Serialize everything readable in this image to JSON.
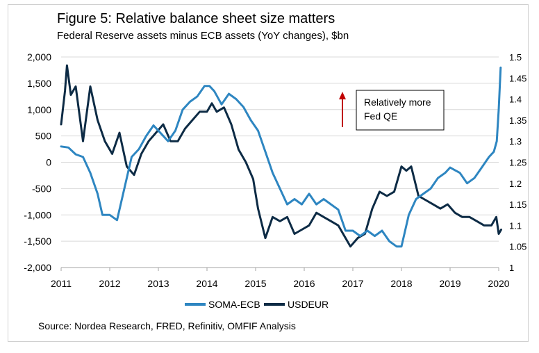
{
  "title": "Figure 5: Relative balance sheet size matters",
  "subtitle": "Federal Reserve assets minus ECB assets (YoY changes), $bn",
  "source": "Source: Nordea Research, FRED, Refinitiv, OMFIF Analysis",
  "annotation": {
    "lines": [
      "Relatively more",
      "Fed QE"
    ],
    "arrow_color": "#c00000"
  },
  "colors": {
    "soma": "#2e86c1",
    "usdeur": "#0d2b45",
    "grid": "#d9d9d9",
    "axis": "#a6a6a6"
  },
  "chart_data": {
    "type": "line",
    "title": "Figure 5: Relative balance sheet size matters",
    "subtitle": "Federal Reserve assets minus ECB assets (YoY changes), $bn",
    "x_ticks": [
      "2011",
      "2012",
      "2013",
      "2014",
      "2015",
      "2016",
      "2017",
      "2018",
      "2019",
      "2020"
    ],
    "xlim": [
      2011,
      2020
    ],
    "y_left": {
      "ticks": [
        "2,000",
        "1,500",
        "1,000",
        "500",
        "0",
        "-500",
        "-1,000",
        "-1,500",
        "-2,000"
      ],
      "lim": [
        -2000,
        2000
      ]
    },
    "y_right": {
      "ticks": [
        "1.5",
        "1.45",
        "1.4",
        "1.35",
        "1.3",
        "1.25",
        "1.2",
        "1.15",
        "1.1",
        "1.05",
        "1"
      ],
      "lim": [
        1.0,
        1.5
      ]
    },
    "grid": "horizontal",
    "legend_position": "bottom",
    "series": [
      {
        "name": "SOMA-ECB",
        "axis": "left",
        "x": [
          2011.0,
          2011.15,
          2011.3,
          2011.45,
          2011.6,
          2011.75,
          2011.85,
          2012.0,
          2012.15,
          2012.3,
          2012.45,
          2012.6,
          2012.75,
          2012.9,
          2013.05,
          2013.2,
          2013.35,
          2013.5,
          2013.65,
          2013.8,
          2013.95,
          2014.05,
          2014.15,
          2014.3,
          2014.45,
          2014.6,
          2014.75,
          2014.9,
          2015.05,
          2015.2,
          2015.35,
          2015.5,
          2015.65,
          2015.8,
          2015.95,
          2016.1,
          2016.25,
          2016.4,
          2016.55,
          2016.7,
          2016.85,
          2017.0,
          2017.15,
          2017.3,
          2017.45,
          2017.6,
          2017.75,
          2017.9,
          2018.0,
          2018.15,
          2018.3,
          2018.45,
          2018.6,
          2018.75,
          2018.9,
          2019.0,
          2019.1,
          2019.2,
          2019.35,
          2019.5,
          2019.65,
          2019.8,
          2019.9,
          2019.96,
          2020.0,
          2020.04
        ],
        "values": [
          300,
          280,
          150,
          100,
          -200,
          -600,
          -1000,
          -1000,
          -1100,
          -500,
          100,
          250,
          500,
          700,
          550,
          400,
          600,
          1000,
          1150,
          1250,
          1450,
          1450,
          1350,
          1100,
          1300,
          1200,
          1050,
          800,
          600,
          200,
          -200,
          -500,
          -800,
          -700,
          -800,
          -600,
          -800,
          -700,
          -800,
          -900,
          -1300,
          -1300,
          -1400,
          -1300,
          -1400,
          -1300,
          -1500,
          -1600,
          -1600,
          -1000,
          -700,
          -600,
          -500,
          -300,
          -200,
          -100,
          -150,
          -200,
          -400,
          -300,
          -100,
          100,
          200,
          400,
          1000,
          1800
        ]
      },
      {
        "name": "USDEUR",
        "axis": "right",
        "x": [
          2011.0,
          2011.08,
          2011.12,
          2011.2,
          2011.3,
          2011.45,
          2011.6,
          2011.75,
          2011.9,
          2012.05,
          2012.2,
          2012.35,
          2012.5,
          2012.65,
          2012.8,
          2012.95,
          2013.1,
          2013.25,
          2013.4,
          2013.55,
          2013.7,
          2013.85,
          2014.0,
          2014.1,
          2014.2,
          2014.35,
          2014.5,
          2014.65,
          2014.8,
          2014.95,
          2015.05,
          2015.2,
          2015.35,
          2015.5,
          2015.65,
          2015.8,
          2015.95,
          2016.1,
          2016.25,
          2016.4,
          2016.55,
          2016.7,
          2016.85,
          2016.95,
          2017.1,
          2017.25,
          2017.4,
          2017.55,
          2017.7,
          2017.85,
          2018.0,
          2018.1,
          2018.2,
          2018.35,
          2018.5,
          2018.65,
          2018.8,
          2018.95,
          2019.1,
          2019.25,
          2019.4,
          2019.55,
          2019.7,
          2019.85,
          2019.95,
          2020.0,
          2020.05
        ],
        "values": [
          1.34,
          1.42,
          1.48,
          1.41,
          1.43,
          1.3,
          1.43,
          1.35,
          1.3,
          1.27,
          1.32,
          1.24,
          1.22,
          1.27,
          1.3,
          1.32,
          1.34,
          1.3,
          1.3,
          1.33,
          1.35,
          1.37,
          1.37,
          1.39,
          1.37,
          1.38,
          1.34,
          1.28,
          1.25,
          1.21,
          1.14,
          1.07,
          1.12,
          1.11,
          1.12,
          1.08,
          1.09,
          1.1,
          1.13,
          1.12,
          1.11,
          1.1,
          1.07,
          1.05,
          1.07,
          1.08,
          1.14,
          1.18,
          1.17,
          1.18,
          1.24,
          1.23,
          1.24,
          1.17,
          1.16,
          1.15,
          1.14,
          1.15,
          1.13,
          1.12,
          1.12,
          1.11,
          1.1,
          1.1,
          1.12,
          1.08,
          1.09
        ]
      }
    ]
  }
}
